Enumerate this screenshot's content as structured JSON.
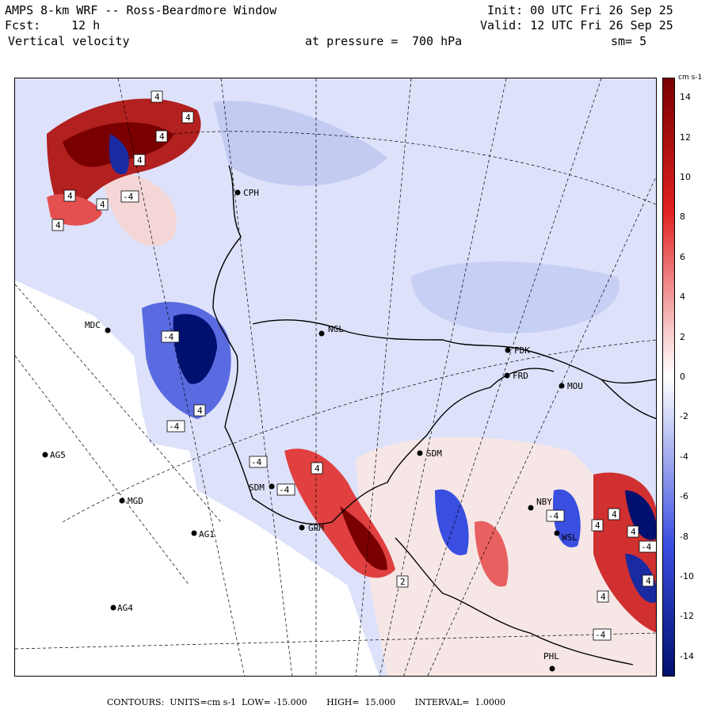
{
  "header": {
    "title": "AMPS 8-km WRF -- Ross-Beardmore Window",
    "forecast_label": "Fcst:",
    "forecast_value": "12 h",
    "variable": "Vertical velocity",
    "init": "Init: 00 UTC Fri 26 Sep 25",
    "valid": "Valid: 12 UTC Fri 26 Sep 25",
    "pressure_label": "at pressure =",
    "pressure_value": "700 hPa",
    "smoothing": "sm= 5"
  },
  "colorbar": {
    "units": "cm s-1",
    "ticks": [
      "14",
      "12",
      "10",
      "8",
      "6",
      "4",
      "2",
      "0",
      "-2",
      "-4",
      "-6",
      "-8",
      "-10",
      "-12",
      "-14"
    ],
    "range": [
      -15,
      15
    ],
    "colors": {
      "strong_up": "#7a0000",
      "mid_up": "#e02020",
      "weak_up": "#f8c8c8",
      "neutral": "#ffffff",
      "weak_down": "#c8cff5",
      "mid_down": "#3a4ee0",
      "strong_down": "#00106e"
    }
  },
  "stations": [
    {
      "id": "CPH"
    },
    {
      "id": "MDC"
    },
    {
      "id": "NGL"
    },
    {
      "id": "FDK"
    },
    {
      "id": "FRD"
    },
    {
      "id": "MOU"
    },
    {
      "id": "AG5"
    },
    {
      "id": "SDM"
    },
    {
      "id": "SDM"
    },
    {
      "id": "MGD"
    },
    {
      "id": "NBY"
    },
    {
      "id": "AG1"
    },
    {
      "id": "GRM"
    },
    {
      "id": "WSL"
    },
    {
      "id": "AG4"
    },
    {
      "id": "PHL"
    }
  ],
  "contour_labels": [
    "4",
    "4",
    "4",
    "4",
    "4",
    "4",
    "4",
    "-4",
    "-4",
    "-4",
    "-4",
    "-4",
    "4",
    "-4",
    "4",
    "-4",
    "4",
    "4",
    "4",
    "4",
    "-4",
    "4",
    "2"
  ],
  "footer": {
    "contours_label": "CONTOURS:",
    "units_label": "UNITS=cm s-1",
    "low_label": "LOW=",
    "low_value": "-15.000",
    "high_label": "HIGH=",
    "high_value": "15.000",
    "interval_label": "INTERVAL=",
    "interval_value": "1.0000"
  }
}
